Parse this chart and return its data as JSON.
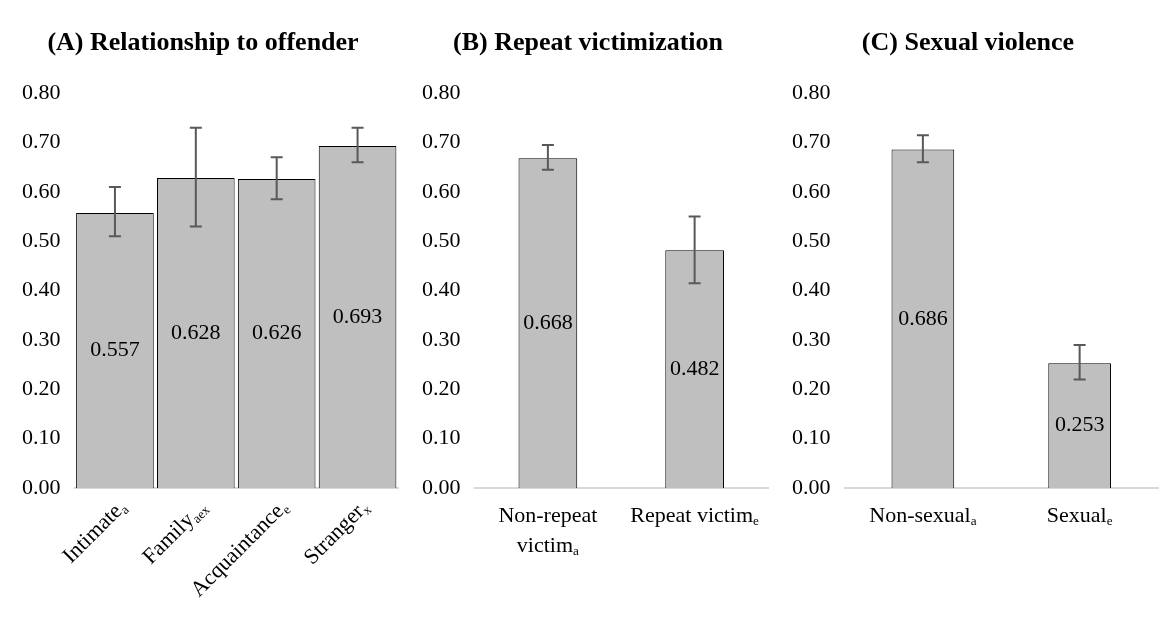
{
  "chart_data": [
    {
      "type": "bar",
      "title": "(A) Relationship to offender",
      "categories": [
        "Intimate$_{a}$",
        "Family$_{aex}$",
        "Acquaintance$_{e}$",
        "Stranger$_{x}$"
      ],
      "values": [
        0.557,
        0.628,
        0.626,
        0.693
      ],
      "errors": [
        [
          0.51,
          0.61
        ],
        [
          0.53,
          0.73
        ],
        [
          0.585,
          0.67
        ],
        [
          0.66,
          0.73
        ]
      ],
      "color": "#bfbfbf",
      "ylim": [
        0,
        0.8
      ],
      "yticks": [
        {
          "value": 0,
          "label": "0.00"
        },
        {
          "value": 0.1,
          "label": "0.10"
        },
        {
          "value": 0.2,
          "label": "0.20"
        },
        {
          "value": 0.3,
          "label": "0.30"
        },
        {
          "value": 0.4,
          "label": "0.40"
        },
        {
          "value": 0.5,
          "label": "0.50"
        },
        {
          "value": 0.6,
          "label": "0.60"
        },
        {
          "value": 0.7,
          "label": "0.70"
        },
        {
          "value": 0.8,
          "label": "0.80"
        }
      ],
      "data_labels": true,
      "grid": false,
      "legend": false
    },
    {
      "type": "bar",
      "title": "(B) Repeat victimization",
      "categories": [
        "Non-repeat victim$_{a}$",
        "Repeat victim$_{e}$"
      ],
      "values": [
        0.668,
        0.482
      ],
      "errors": [
        [
          0.645,
          0.695
        ],
        [
          0.415,
          0.55
        ]
      ],
      "color": "#bfbfbf",
      "ylim": [
        0,
        0.8
      ],
      "yticks": [
        {
          "value": 0,
          "label": "0.00"
        },
        {
          "value": 0.1,
          "label": "0.10"
        },
        {
          "value": 0.2,
          "label": "0.20"
        },
        {
          "value": 0.3,
          "label": "0.30"
        },
        {
          "value": 0.4,
          "label": "0.40"
        },
        {
          "value": 0.5,
          "label": "0.50"
        },
        {
          "value": 0.6,
          "label": "0.60"
        },
        {
          "value": 0.7,
          "label": "0.70"
        },
        {
          "value": 0.8,
          "label": "0.80"
        }
      ],
      "data_labels": true,
      "grid": false,
      "legend": false
    },
    {
      "type": "bar",
      "title": "(C) Sexual violence",
      "categories": [
        "Non-sexual$_{a}$",
        "Sexual$_{e}$"
      ],
      "values": [
        0.686,
        0.253
      ],
      "errors": [
        [
          0.66,
          0.715
        ],
        [
          0.22,
          0.29
        ]
      ],
      "color": "#bfbfbf",
      "ylim": [
        0,
        0.8
      ],
      "yticks": [
        {
          "value": 0,
          "label": "0.00"
        },
        {
          "value": 0.1,
          "label": "0.10"
        },
        {
          "value": 0.2,
          "label": "0.20"
        },
        {
          "value": 0.3,
          "label": "0.30"
        },
        {
          "value": 0.4,
          "label": "0.40"
        },
        {
          "value": 0.5,
          "label": "0.50"
        },
        {
          "value": 0.6,
          "label": "0.60"
        },
        {
          "value": 0.7,
          "label": "0.70"
        },
        {
          "value": 0.8,
          "label": "0.80"
        }
      ],
      "data_labels": true,
      "grid": false,
      "legend": false
    }
  ]
}
